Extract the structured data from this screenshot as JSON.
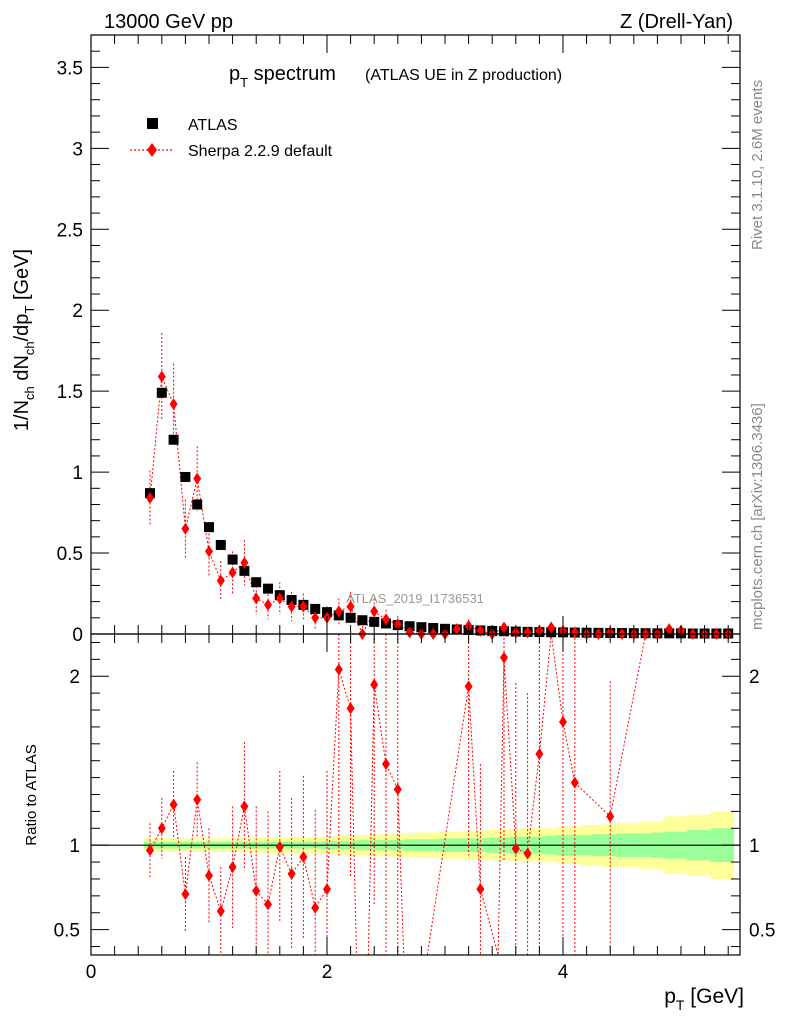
{
  "header": {
    "left": "13000 GeV pp",
    "right": "Z (Drell-Yan)"
  },
  "title": {
    "main": "p",
    "main_sub": "T",
    "main_rest": " spectrum",
    "extra": "(ATLAS UE in Z production)"
  },
  "side_labels": {
    "rivet": "Rivet 3.1.10,  2.6M events",
    "mcplots": "mcplots.cern.ch [arXiv:1306.3436]"
  },
  "watermark": "ATLAS_2019_I1736531",
  "colors": {
    "data": "#000000",
    "mc": "#ff0000",
    "band_inner": "#99ff99",
    "band_outer": "#ffff99"
  },
  "chart_data": [
    {
      "id": "main",
      "type": "scatter",
      "ylabel": "1/N_ch dN_ch/dp_T [GeV]",
      "ylabel_parts": {
        "a": "1/N",
        "a_sub": "ch",
        "b": " dN",
        "b_sub": "ch",
        "c": "/dp",
        "c_sub": "T",
        "d": " [GeV]"
      },
      "xlim": [
        0,
        5.5
      ],
      "ylim": [
        0,
        3.7
      ],
      "yticks": [
        0,
        0.5,
        1,
        1.5,
        2,
        2.5,
        3,
        3.5
      ],
      "ytick_labels": [
        "0",
        "0.5",
        "1",
        "1.5",
        "2",
        "2.5",
        "3",
        "3.5"
      ],
      "legend": {
        "placement": "top-left",
        "entries": [
          "ATLAS",
          "Sherpa 2.2.9 default"
        ]
      },
      "x": [
        0.5,
        0.6,
        0.7,
        0.8,
        0.9,
        1.0,
        1.1,
        1.2,
        1.3,
        1.4,
        1.5,
        1.6,
        1.7,
        1.8,
        1.9,
        2.0,
        2.1,
        2.2,
        2.3,
        2.4,
        2.5,
        2.6,
        2.7,
        2.8,
        2.9,
        3.0,
        3.1,
        3.2,
        3.3,
        3.4,
        3.5,
        3.6,
        3.7,
        3.8,
        3.9,
        4.0,
        4.1,
        4.2,
        4.3,
        4.4,
        4.5,
        4.6,
        4.7,
        4.8,
        4.9,
        5.0,
        5.1,
        5.2,
        5.3,
        5.4
      ],
      "series": [
        {
          "name": "ATLAS",
          "values": [
            0.87,
            1.49,
            1.2,
            0.97,
            0.8,
            0.66,
            0.55,
            0.46,
            0.39,
            0.32,
            0.28,
            0.24,
            0.21,
            0.18,
            0.155,
            0.135,
            0.115,
            0.1,
            0.085,
            0.075,
            0.065,
            0.055,
            0.048,
            0.042,
            0.037,
            0.032,
            0.028,
            0.025,
            0.022,
            0.019,
            0.017,
            0.015,
            0.013,
            0.012,
            0.011,
            0.01,
            0.009,
            0.008,
            0.007,
            0.006,
            0.006,
            0.005,
            0.005,
            0.004,
            0.004,
            0.004,
            0.003,
            0.003,
            0.003,
            0.003
          ]
        },
        {
          "name": "Sherpa 2.2.9 default",
          "values": [
            0.84,
            1.59,
            1.42,
            0.65,
            0.96,
            0.51,
            0.33,
            0.38,
            0.44,
            0.22,
            0.18,
            0.22,
            0.17,
            0.17,
            0.1,
            0.1,
            0.14,
            0.17,
            0.0,
            0.14,
            0.09,
            0.06,
            0.01,
            0.0,
            0.0,
            0.0,
            0.03,
            0.05,
            0.02,
            0.0,
            0.04,
            0.01,
            0.01,
            0.02,
            0.04,
            0.02,
            0.01,
            0.0,
            0.0,
            0.01,
            0.0,
            0.0,
            0.0,
            0.0,
            0.03,
            0.02,
            0.0,
            0.0,
            0.0,
            0.0
          ],
          "errors": [
            0.17,
            0.27,
            0.25,
            0.18,
            0.2,
            0.16,
            0.12,
            0.13,
            0.14,
            0.1,
            0.09,
            0.1,
            0.09,
            0.08,
            0.07,
            0.07,
            0.08,
            0.09,
            0.05,
            0.08,
            0.06,
            0.05,
            0.03,
            0.03,
            0.03,
            0.03,
            0.03,
            0.04,
            0.03,
            0.02,
            0.03,
            0.02,
            0.02,
            0.02,
            0.03,
            0.02,
            0.02,
            0.02,
            0.02,
            0.02,
            0.01,
            0.01,
            0.01,
            0.01,
            0.02,
            0.02,
            0.01,
            0.01,
            0.01,
            0.01
          ]
        }
      ]
    },
    {
      "id": "ratio",
      "type": "line",
      "xlabel": "p_T [GeV]",
      "xlabel_parts": {
        "a": "p",
        "a_sub": "T",
        "b": " [GeV]"
      },
      "ylabel": "Ratio to ATLAS",
      "xlim": [
        0,
        5.5
      ],
      "ylim": [
        0.35,
        2.25
      ],
      "yticks": [
        0.5,
        1,
        2
      ],
      "ytick_labels": [
        "0.5",
        "1",
        "2"
      ],
      "xticks": [
        0,
        2,
        4
      ],
      "xtick_labels": [
        "0",
        "2",
        "4"
      ],
      "x": [
        0.5,
        0.6,
        0.7,
        0.8,
        0.9,
        1.0,
        1.1,
        1.2,
        1.3,
        1.4,
        1.5,
        1.6,
        1.7,
        1.8,
        1.9,
        2.0,
        2.1,
        2.2,
        2.4,
        2.5,
        2.6,
        3.2,
        3.3,
        3.5,
        3.6,
        3.7,
        3.8,
        4.0,
        4.1,
        4.4
      ],
      "series": [
        {
          "name": "Sherpa 2.2.9 default",
          "values": [
            0.97,
            1.1,
            1.24,
            0.71,
            1.27,
            0.82,
            0.61,
            0.87,
            1.23,
            0.73,
            0.65,
            0.99,
            0.83,
            0.93,
            0.63,
            0.74,
            2.04,
            1.81,
            1.95,
            1.48,
            1.33,
            1.94,
            0.74,
            2.11,
            0.98,
            0.95,
            1.54,
            1.73,
            1.37,
            1.17
          ],
          "err_low": [
            0.16,
            0.18,
            0.2,
            0.22,
            0.22,
            0.28,
            0.26,
            0.36,
            0.38,
            0.5,
            0.55,
            0.45,
            0.45,
            0.48,
            0.58,
            0.7,
            1.1,
            1.0,
            1.3,
            1.2,
            1.2,
            1.0,
            0.74,
            1.2,
            0.98,
            0.95,
            1.54,
            1.6,
            1.37,
            0.8
          ],
          "err_high": [
            0.16,
            0.18,
            0.2,
            0.22,
            0.22,
            0.28,
            0.26,
            0.36,
            0.38,
            0.5,
            0.55,
            0.45,
            0.45,
            0.48,
            0.58,
            0.7,
            1.1,
            1.0,
            1.3,
            1.2,
            1.2,
            1.0,
            0.74,
            1.2,
            0.98,
            0.95,
            1.54,
            1.6,
            1.37,
            0.8
          ]
        }
      ],
      "band": {
        "x_edges": [
          0.45,
          0.55,
          0.65,
          0.75,
          0.85,
          0.95,
          1.05,
          1.15,
          1.25,
          1.35,
          1.45,
          1.55,
          1.65,
          1.75,
          1.85,
          1.95,
          2.05,
          2.15,
          2.25,
          2.35,
          2.45,
          2.55,
          2.65,
          2.75,
          2.85,
          2.95,
          3.05,
          3.15,
          3.25,
          3.35,
          3.45,
          3.55,
          3.65,
          3.75,
          3.85,
          3.95,
          4.05,
          4.15,
          4.25,
          4.35,
          4.45,
          4.55,
          4.65,
          4.75,
          4.85,
          4.95,
          5.05,
          5.15,
          5.25,
          5.35,
          5.45
        ],
        "inner": [
          0.02,
          0.02,
          0.02,
          0.02,
          0.02,
          0.02,
          0.02,
          0.02,
          0.02,
          0.02,
          0.02,
          0.02,
          0.02,
          0.02,
          0.02,
          0.025,
          0.025,
          0.025,
          0.03,
          0.03,
          0.03,
          0.03,
          0.035,
          0.035,
          0.035,
          0.04,
          0.04,
          0.04,
          0.04,
          0.045,
          0.045,
          0.05,
          0.05,
          0.05,
          0.055,
          0.06,
          0.06,
          0.06,
          0.065,
          0.065,
          0.07,
          0.07,
          0.07,
          0.075,
          0.08,
          0.08,
          0.09,
          0.09,
          0.1,
          0.1
        ],
        "outer": [
          0.04,
          0.04,
          0.04,
          0.04,
          0.04,
          0.04,
          0.04,
          0.04,
          0.04,
          0.045,
          0.045,
          0.045,
          0.05,
          0.05,
          0.05,
          0.05,
          0.055,
          0.06,
          0.06,
          0.065,
          0.065,
          0.07,
          0.07,
          0.075,
          0.075,
          0.08,
          0.08,
          0.085,
          0.085,
          0.09,
          0.09,
          0.095,
          0.1,
          0.1,
          0.1,
          0.11,
          0.11,
          0.12,
          0.12,
          0.13,
          0.13,
          0.13,
          0.14,
          0.14,
          0.17,
          0.17,
          0.18,
          0.18,
          0.2,
          0.2
        ]
      }
    }
  ]
}
